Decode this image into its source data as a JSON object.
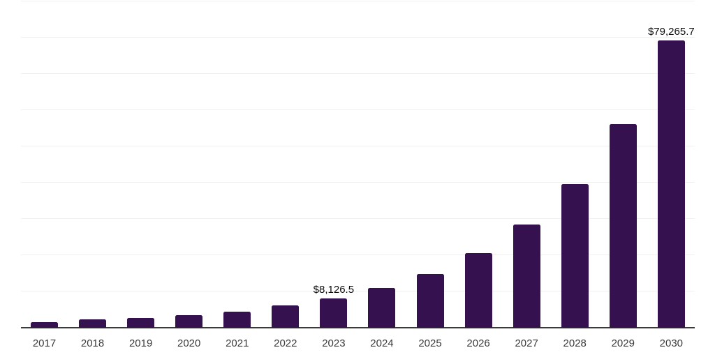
{
  "chart_data": {
    "type": "bar",
    "title": "",
    "xlabel": "",
    "ylabel": "",
    "categories": [
      "2017",
      "2018",
      "2019",
      "2020",
      "2021",
      "2022",
      "2023",
      "2024",
      "2025",
      "2026",
      "2027",
      "2028",
      "2029",
      "2030"
    ],
    "values": [
      1600,
      2250,
      2750,
      3500,
      4400,
      6100,
      8126.5,
      11000,
      14900,
      20500,
      28400,
      39700,
      56100,
      79265.7
    ],
    "value_labels": {
      "2023": "$8,126.5",
      "2030": "$79,265.7"
    },
    "ylim": [
      0,
      90000
    ],
    "gridline_step": 10000,
    "grid": true,
    "legend_position": "none",
    "colors": {
      "bar": "#361150",
      "gridline": "#F0F0F1",
      "axis_line": "#3B3B3B",
      "tick_label": "#3A3A3A",
      "data_label": "#0D0D0D",
      "background": "#FFFFFF"
    }
  }
}
